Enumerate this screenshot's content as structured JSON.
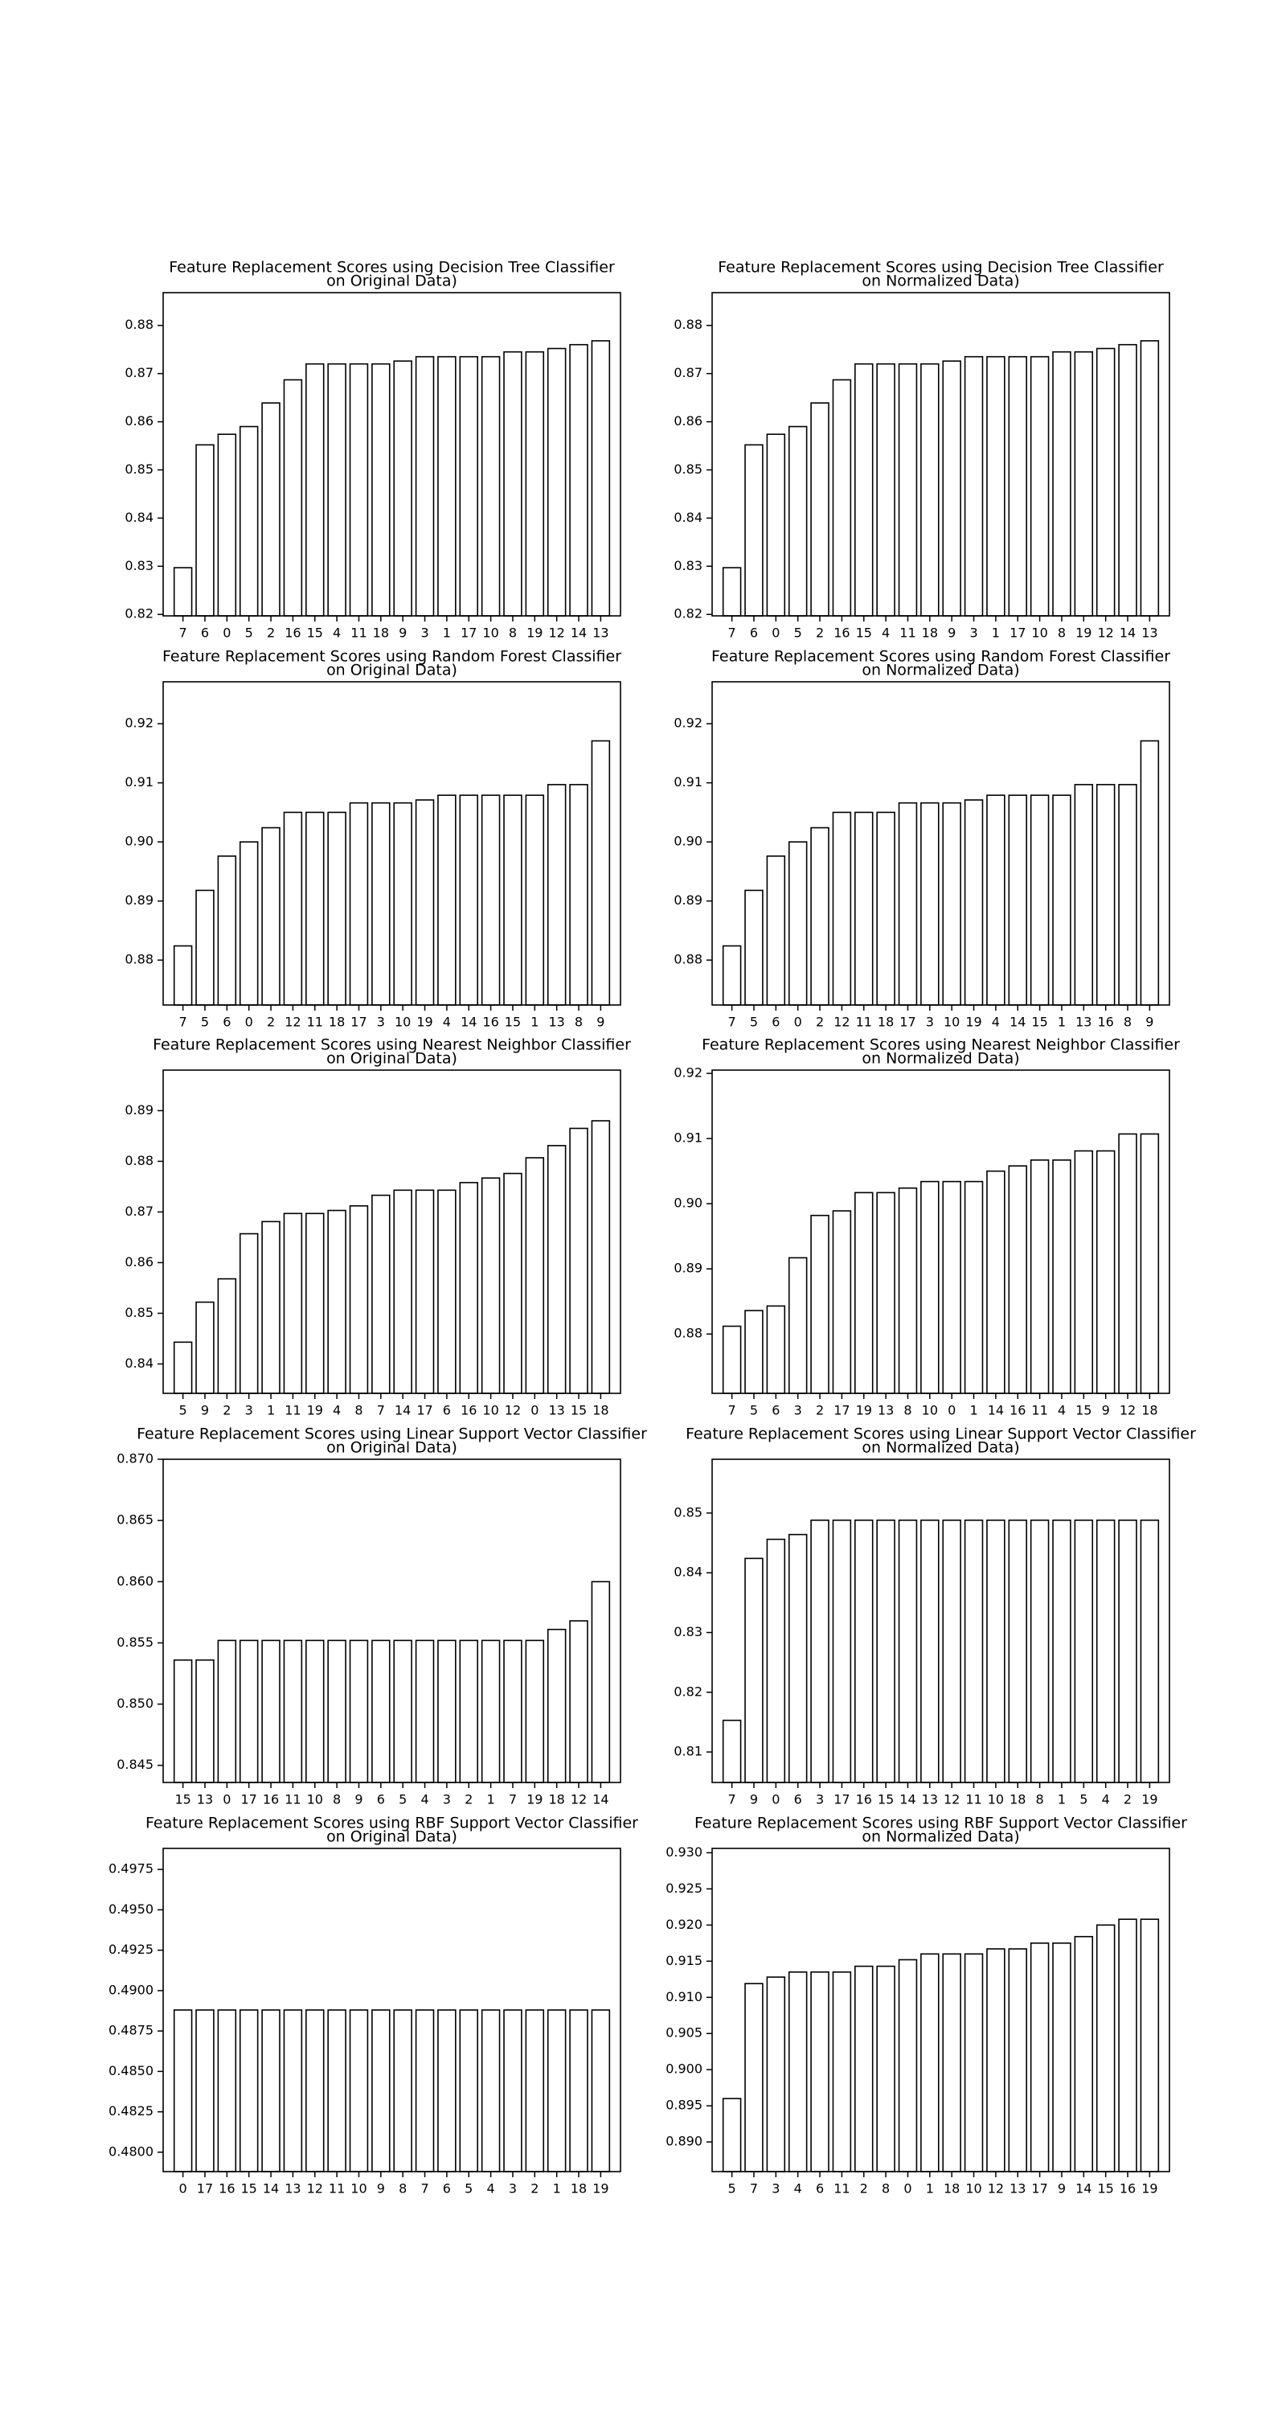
{
  "chart_data": [
    {
      "type": "bar",
      "title": [
        "Feature Replacement Scores using Decision Tree Classifier",
        "on Original Data)"
      ],
      "categories": [
        "7",
        "6",
        "0",
        "5",
        "2",
        "16",
        "15",
        "4",
        "11",
        "18",
        "9",
        "3",
        "1",
        "17",
        "10",
        "8",
        "19",
        "12",
        "14",
        "13"
      ],
      "values": [
        0.8297,
        0.8552,
        0.8574,
        0.859,
        0.8639,
        0.8687,
        0.872,
        0.872,
        0.872,
        0.872,
        0.8726,
        0.8735,
        0.8735,
        0.8735,
        0.8735,
        0.8745,
        0.8745,
        0.8752,
        0.876,
        0.8768
      ],
      "color": "#ffffff",
      "ylim": [
        0.8197,
        0.8868
      ],
      "yticks": [
        0.82,
        0.83,
        0.84,
        0.85,
        0.86,
        0.87,
        0.88
      ],
      "grid": false
    },
    {
      "type": "bar",
      "title": [
        "Feature Replacement Scores using Decision Tree Classifier",
        "on Normalized Data)"
      ],
      "categories": [
        "7",
        "6",
        "0",
        "5",
        "2",
        "16",
        "15",
        "4",
        "11",
        "18",
        "9",
        "3",
        "1",
        "17",
        "10",
        "8",
        "19",
        "12",
        "14",
        "13"
      ],
      "values": [
        0.8297,
        0.8552,
        0.8574,
        0.859,
        0.8639,
        0.8687,
        0.872,
        0.872,
        0.872,
        0.872,
        0.8726,
        0.8735,
        0.8735,
        0.8735,
        0.8735,
        0.8745,
        0.8745,
        0.8752,
        0.876,
        0.8768
      ],
      "color": "#ffffff",
      "ylim": [
        0.8197,
        0.8868
      ],
      "yticks": [
        0.82,
        0.83,
        0.84,
        0.85,
        0.86,
        0.87,
        0.88
      ],
      "grid": false
    },
    {
      "type": "bar",
      "title": [
        "Feature Replacement Scores using Random Forest Classifier",
        "on Original Data)"
      ],
      "categories": [
        "7",
        "5",
        "6",
        "0",
        "2",
        "12",
        "11",
        "18",
        "17",
        "3",
        "10",
        "19",
        "4",
        "14",
        "16",
        "15",
        "1",
        "13",
        "8",
        "9"
      ],
      "values": [
        0.8824,
        0.8918,
        0.8976,
        0.9,
        0.9024,
        0.905,
        0.905,
        0.905,
        0.9066,
        0.9066,
        0.9066,
        0.9071,
        0.9079,
        0.9079,
        0.9079,
        0.9079,
        0.9079,
        0.9097,
        0.9097,
        0.9171
      ],
      "color": "#ffffff",
      "ylim": [
        0.8724,
        0.9271
      ],
      "yticks": [
        0.88,
        0.89,
        {
          "value": 0.9,
          "label": "0.90"
        },
        0.91,
        0.92
      ],
      "grid": false
    },
    {
      "type": "bar",
      "title": [
        "Feature Replacement Scores using Random Forest Classifier",
        "on Normalized Data)"
      ],
      "categories": [
        "7",
        "5",
        "6",
        "0",
        "2",
        "12",
        "11",
        "18",
        "17",
        "3",
        "10",
        "19",
        "4",
        "14",
        "15",
        "1",
        "13",
        "16",
        "8",
        "9"
      ],
      "values": [
        0.8824,
        0.8918,
        0.8976,
        0.9,
        0.9024,
        0.905,
        0.905,
        0.905,
        0.9066,
        0.9066,
        0.9066,
        0.9071,
        0.9079,
        0.9079,
        0.9079,
        0.9079,
        0.9097,
        0.9097,
        0.9097,
        0.9171
      ],
      "color": "#ffffff",
      "ylim": [
        0.8724,
        0.9271
      ],
      "yticks": [
        0.88,
        0.89,
        {
          "value": 0.9,
          "label": "0.90"
        },
        0.91,
        0.92
      ],
      "grid": false
    },
    {
      "type": "bar",
      "title": [
        "Feature Replacement Scores using Nearest Neighbor Classifier",
        "on Original Data)"
      ],
      "categories": [
        "5",
        "9",
        "2",
        "3",
        "1",
        "11",
        "19",
        "4",
        "8",
        "7",
        "14",
        "17",
        "6",
        "16",
        "10",
        "12",
        "0",
        "13",
        "15",
        "18"
      ],
      "values": [
        0.8443,
        0.8522,
        0.8568,
        0.8657,
        0.8681,
        0.8697,
        0.8697,
        0.8703,
        0.8712,
        0.8733,
        0.8743,
        0.8743,
        0.8743,
        0.8758,
        0.8767,
        0.8776,
        0.8807,
        0.8831,
        0.8865,
        0.888
      ],
      "color": "#ffffff",
      "ylim": [
        0.8342,
        0.898
      ],
      "yticks": [
        0.84,
        0.85,
        0.86,
        0.87,
        0.88,
        0.89
      ],
      "grid": false
    },
    {
      "type": "bar",
      "title": [
        "Feature Replacement Scores using Nearest Neighbor Classifier",
        "on Normalized Data)"
      ],
      "categories": [
        "7",
        "5",
        "6",
        "3",
        "2",
        "17",
        "19",
        "13",
        "8",
        "10",
        "0",
        "1",
        "14",
        "16",
        "11",
        "4",
        "15",
        "9",
        "12",
        "18"
      ],
      "values": [
        0.8812,
        0.8836,
        0.8843,
        0.8917,
        0.8982,
        0.8989,
        0.9017,
        0.9017,
        0.9024,
        0.9034,
        0.9034,
        0.9034,
        0.905,
        0.9058,
        0.9067,
        0.9067,
        0.9081,
        0.9081,
        0.9107,
        0.9107
      ],
      "color": "#ffffff",
      "ylim": [
        0.8709,
        0.9205
      ],
      "yticks": [
        0.88,
        0.89,
        {
          "value": 0.9,
          "label": "0.90"
        },
        0.91,
        0.92
      ],
      "grid": false
    },
    {
      "type": "bar",
      "title": [
        "Feature Replacement Scores using Linear Support Vector Classifier",
        "on Original Data)"
      ],
      "categories": [
        "15",
        "13",
        "0",
        "17",
        "16",
        "11",
        "10",
        "8",
        "9",
        "6",
        "5",
        "4",
        "3",
        "2",
        "1",
        "7",
        "19",
        "18",
        "12",
        "14"
      ],
      "values": [
        0.8536,
        0.8536,
        0.8552,
        0.8552,
        0.8552,
        0.8552,
        0.8552,
        0.8552,
        0.8552,
        0.8552,
        0.8552,
        0.8552,
        0.8552,
        0.8552,
        0.8552,
        0.8552,
        0.8552,
        0.8561,
        0.8568,
        0.86
      ],
      "color": "#ffffff",
      "ylim": [
        0.8436,
        0.87
      ],
      "yticks": [
        0.845,
        {
          "value": 0.85,
          "label": "0.850"
        },
        0.855,
        {
          "value": 0.86,
          "label": "0.860"
        },
        0.865,
        {
          "value": 0.87,
          "label": "0.870"
        }
      ],
      "grid": false
    },
    {
      "type": "bar",
      "title": [
        "Feature Replacement Scores using Linear Support Vector Classifier",
        "on Normalized Data)"
      ],
      "categories": [
        "7",
        "9",
        "0",
        "6",
        "3",
        "17",
        "16",
        "15",
        "14",
        "13",
        "12",
        "11",
        "10",
        "18",
        "8",
        "1",
        "5",
        "4",
        "2",
        "19"
      ],
      "values": [
        0.8153,
        0.8424,
        0.8456,
        0.8464,
        0.8488,
        0.8488,
        0.8488,
        0.8488,
        0.8488,
        0.8488,
        0.8488,
        0.8488,
        0.8488,
        0.8488,
        0.8488,
        0.8488,
        0.8488,
        0.8488,
        0.8488,
        0.8488
      ],
      "color": "#ffffff",
      "ylim": [
        0.8049,
        0.859
      ],
      "yticks": [
        0.81,
        0.82,
        0.83,
        0.84,
        0.85
      ],
      "grid": false
    },
    {
      "type": "bar",
      "title": [
        "Feature Replacement Scores using RBF Support Vector Classifier",
        "on Original Data)"
      ],
      "categories": [
        "0",
        "17",
        "16",
        "15",
        "14",
        "13",
        "12",
        "11",
        "10",
        "9",
        "8",
        "7",
        "6",
        "5",
        "4",
        "3",
        "2",
        "1",
        "18",
        "19"
      ],
      "values": [
        0.4888,
        0.4888,
        0.4888,
        0.4888,
        0.4888,
        0.4888,
        0.4888,
        0.4888,
        0.4888,
        0.4888,
        0.4888,
        0.4888,
        0.4888,
        0.4888,
        0.4888,
        0.4888,
        0.4888,
        0.4888,
        0.4888,
        0.4888
      ],
      "color": "#ffffff",
      "ylim": [
        0.4788,
        0.4988
      ],
      "yticks": [
        {
          "value": 0.48,
          "label": "0.4800"
        },
        0.4825,
        {
          "value": 0.485,
          "label": "0.4850"
        },
        0.4875,
        {
          "value": 0.49,
          "label": "0.4900"
        },
        0.4925,
        {
          "value": 0.495,
          "label": "0.4950"
        },
        0.4975
      ],
      "grid": false
    },
    {
      "type": "bar",
      "title": [
        "Feature Replacement Scores using RBF Support Vector Classifier",
        "on Normalized Data)"
      ],
      "categories": [
        "5",
        "7",
        "3",
        "4",
        "6",
        "11",
        "2",
        "8",
        "0",
        "1",
        "18",
        "10",
        "12",
        "13",
        "17",
        "9",
        "14",
        "15",
        "16",
        "19"
      ],
      "values": [
        0.896,
        0.9119,
        0.9128,
        0.9135,
        0.9135,
        0.9135,
        0.9143,
        0.9143,
        0.9152,
        0.916,
        0.916,
        0.916,
        0.9167,
        0.9167,
        0.9175,
        0.9175,
        0.9184,
        0.92,
        0.9208,
        0.9208
      ],
      "color": "#ffffff",
      "ylim": [
        0.8859,
        0.9306
      ],
      "yticks": [
        {
          "value": 0.89,
          "label": "0.890"
        },
        0.895,
        {
          "value": 0.9,
          "label": "0.900"
        },
        0.905,
        {
          "value": 0.91,
          "label": "0.910"
        },
        0.915,
        {
          "value": 0.92,
          "label": "0.920"
        },
        0.925,
        {
          "value": 0.93,
          "label": "0.930"
        }
      ],
      "grid": false
    }
  ]
}
